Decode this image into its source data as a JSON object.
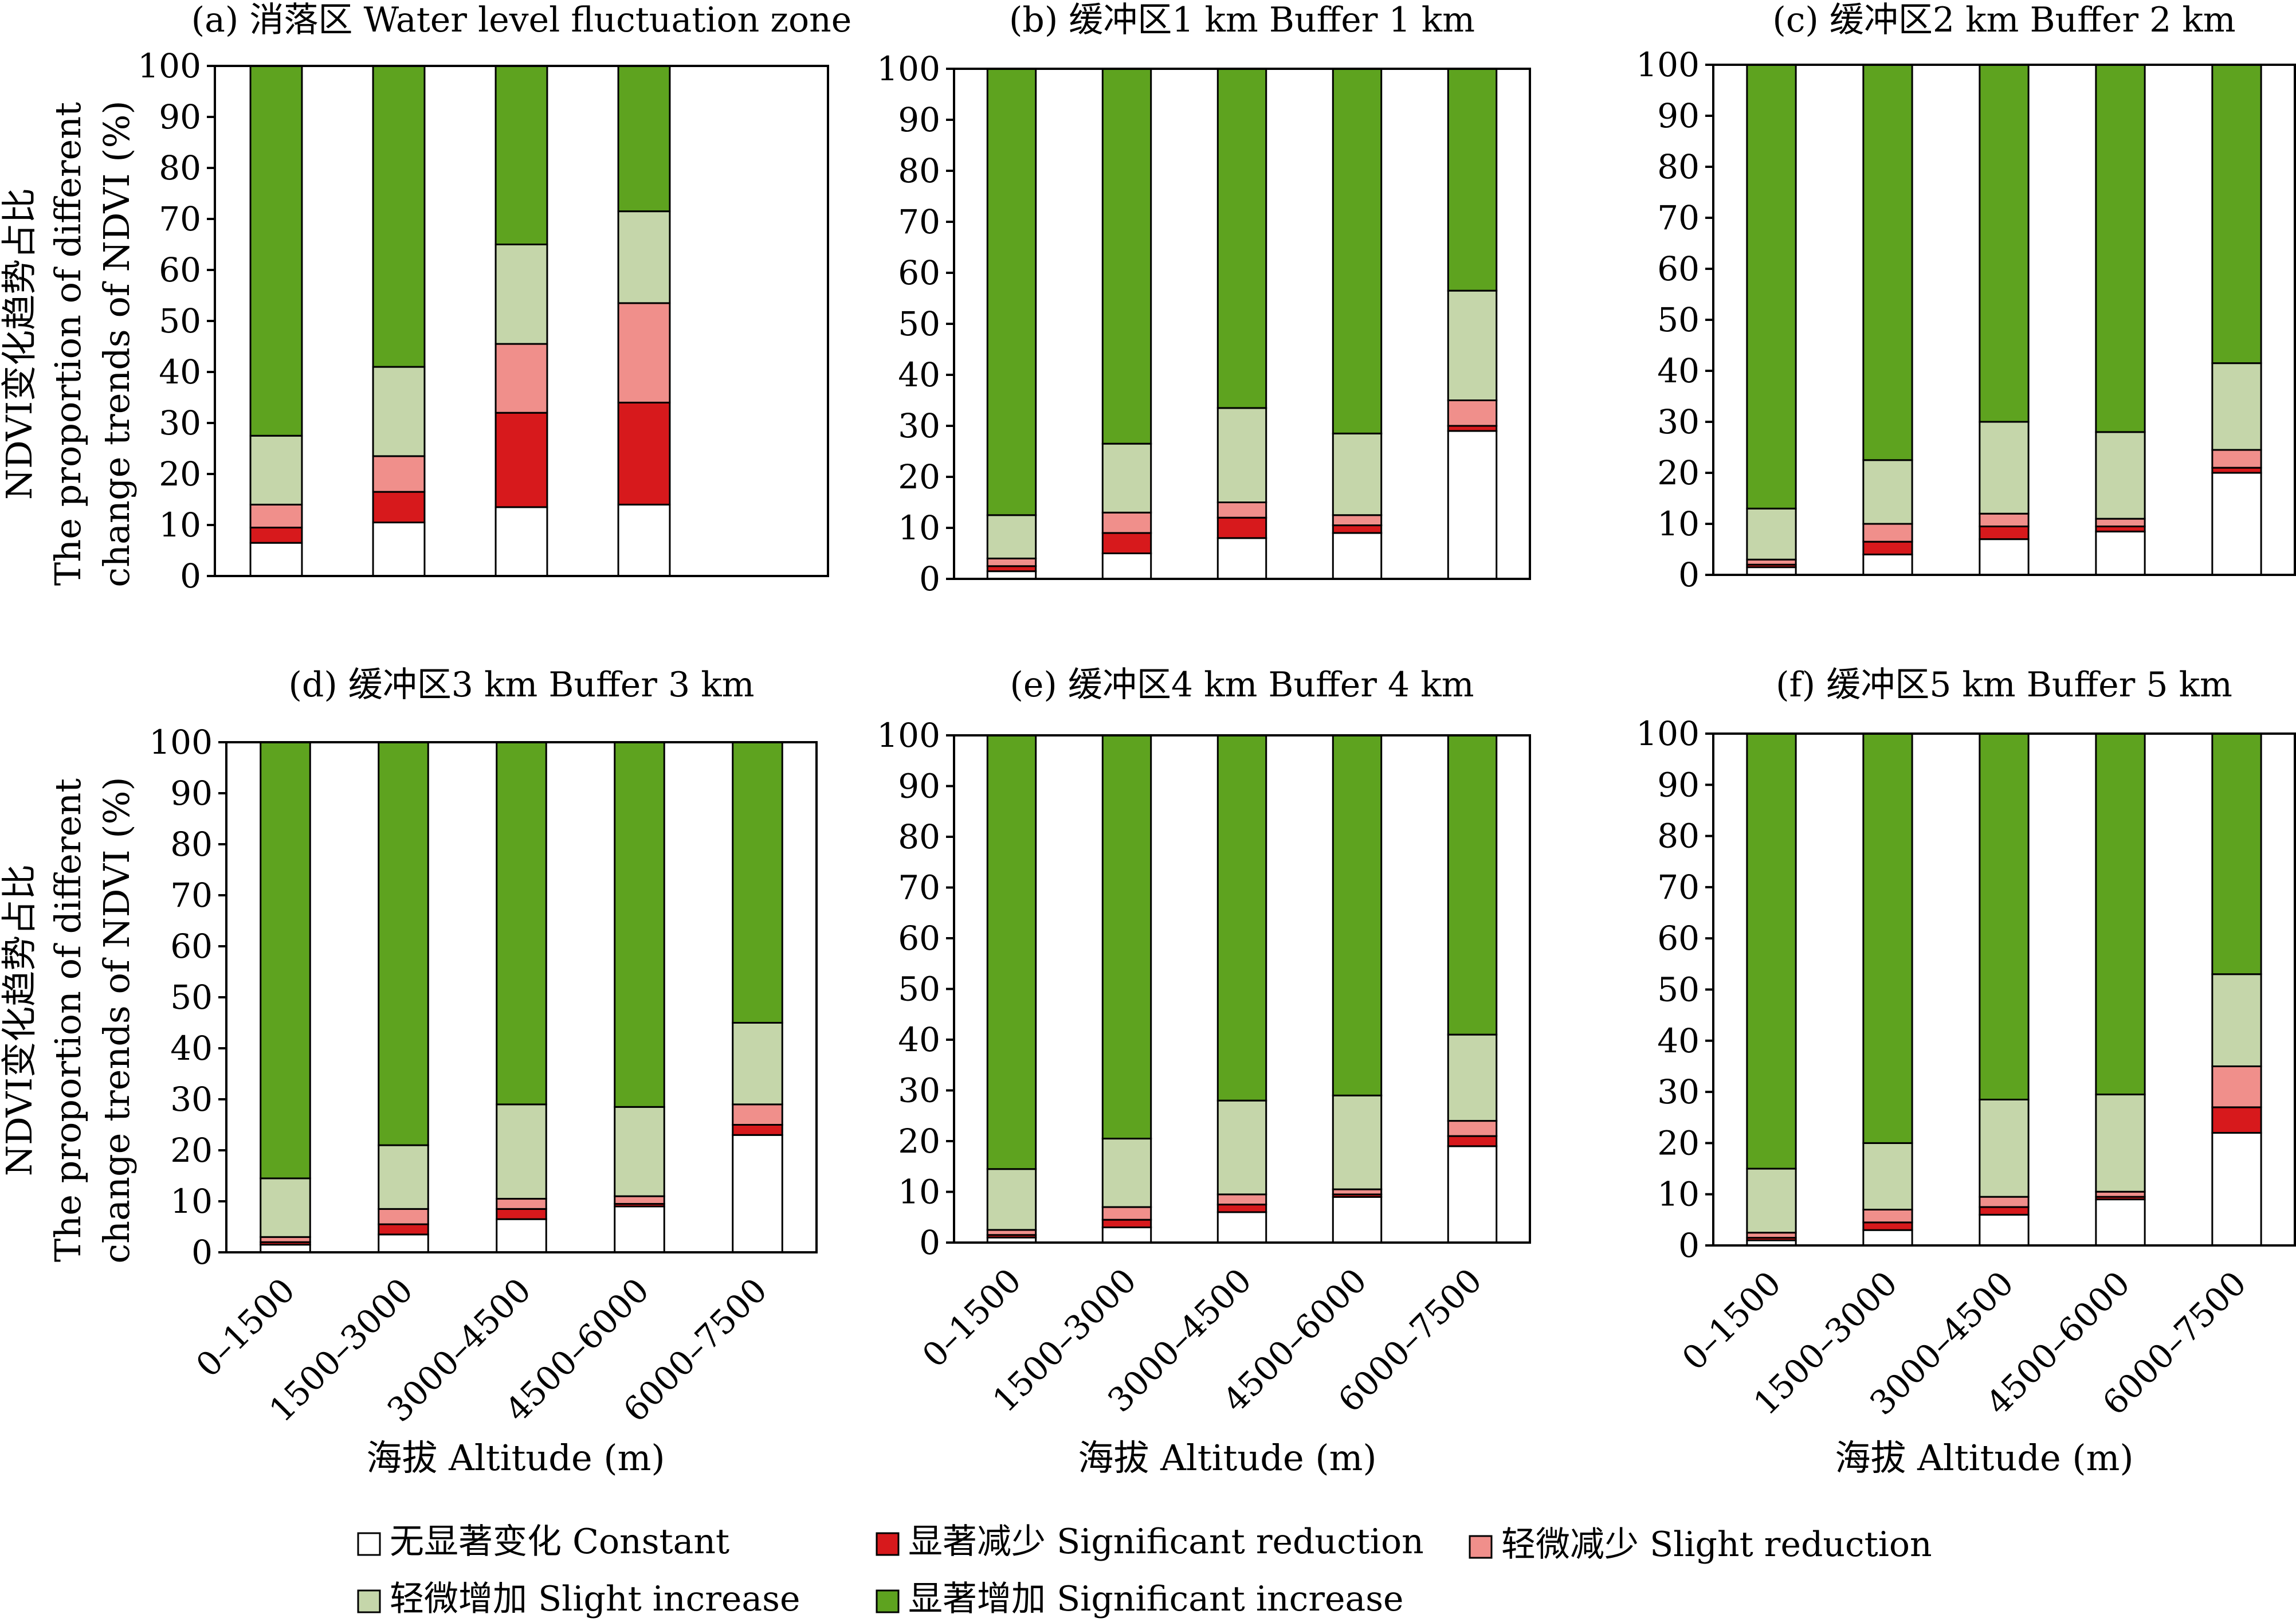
{
  "figure": {
    "y_axis_label_zh": "NDVI变化趋势占比",
    "y_axis_label_en_line1": "The proportion of different",
    "y_axis_label_en_line2": "change trends of NDVI (%)",
    "x_axis_label": "海拔 Altitude (m)"
  },
  "legend": [
    {
      "key": "constant",
      "label": "无显著变化 Constant",
      "color": "#ffffff"
    },
    {
      "key": "sig_red",
      "label": "显著减少 Significant reduction",
      "color": "#d7191c"
    },
    {
      "key": "slight_red",
      "label": "轻微减少 Slight reduction",
      "color": "#f08f8b"
    },
    {
      "key": "slight_inc",
      "label": "轻微增加 Slight increase",
      "color": "#c5d6aa"
    },
    {
      "key": "sig_inc",
      "label": "显著增加 Significant increase",
      "color": "#5ea31f"
    }
  ],
  "chart_data": [
    {
      "type": "bar",
      "stacked": true,
      "title": "(a) 消落区 Water level fluctuation zone",
      "categories": [
        "0–1500",
        "1500–3000",
        "3000–4500",
        "4500–6000",
        "6000–7500"
      ],
      "ylim": [
        0,
        100
      ],
      "yticks": [
        0,
        10,
        20,
        30,
        40,
        50,
        60,
        70,
        80,
        90,
        100
      ],
      "show_xticks": false,
      "series": [
        {
          "name": "无显著变化 Constant",
          "values": [
            6.5,
            10.5,
            13.5,
            14,
            null
          ]
        },
        {
          "name": "显著减少 Significant reduction",
          "values": [
            3,
            6,
            18.5,
            20,
            null
          ]
        },
        {
          "name": "轻微减少 Slight reduction",
          "values": [
            4.5,
            7,
            13.5,
            19.5,
            null
          ]
        },
        {
          "name": "轻微增加 Slight increase",
          "values": [
            13.5,
            17.5,
            19.5,
            18,
            null
          ]
        },
        {
          "name": "显著增加 Significant increase",
          "values": [
            72.5,
            59,
            35,
            28.5,
            null
          ]
        }
      ]
    },
    {
      "type": "bar",
      "stacked": true,
      "title": "(b) 缓冲区1 km Buffer 1 km",
      "categories": [
        "0–1500",
        "1500–3000",
        "3000–4500",
        "4500–6000",
        "6000–7500"
      ],
      "ylim": [
        0,
        100
      ],
      "yticks": [
        0,
        10,
        20,
        30,
        40,
        50,
        60,
        70,
        80,
        90,
        100
      ],
      "show_xticks": false,
      "series": [
        {
          "name": "无显著变化 Constant",
          "values": [
            1.5,
            5,
            8,
            9,
            29
          ]
        },
        {
          "name": "显著减少 Significant reduction",
          "values": [
            1,
            4,
            4,
            1.5,
            1
          ]
        },
        {
          "name": "轻微减少 Slight reduction",
          "values": [
            1.5,
            4,
            3,
            2,
            5
          ]
        },
        {
          "name": "轻微增加 Slight increase",
          "values": [
            8.5,
            13.5,
            18.5,
            16,
            21.5
          ]
        },
        {
          "name": "显著增加 Significant increase",
          "values": [
            87.5,
            73.5,
            66.5,
            71.5,
            43.5
          ]
        }
      ]
    },
    {
      "type": "bar",
      "stacked": true,
      "title": "(c) 缓冲区2 km Buffer 2 km",
      "categories": [
        "0–1500",
        "1500–3000",
        "3000–4500",
        "4500–6000",
        "6000–7500"
      ],
      "ylim": [
        0,
        100
      ],
      "yticks": [
        0,
        10,
        20,
        30,
        40,
        50,
        60,
        70,
        80,
        90,
        100
      ],
      "show_xticks": false,
      "series": [
        {
          "name": "无显著变化 Constant",
          "values": [
            1.5,
            4,
            7,
            8.5,
            20
          ]
        },
        {
          "name": "显著减少 Significant reduction",
          "values": [
            0.5,
            2.5,
            2.5,
            1,
            1
          ]
        },
        {
          "name": "轻微减少 Slight reduction",
          "values": [
            1,
            3.5,
            2.5,
            1.5,
            3.5
          ]
        },
        {
          "name": "轻微增加 Slight increase",
          "values": [
            10,
            12.5,
            18,
            17,
            17
          ]
        },
        {
          "name": "显著增加 Significant increase",
          "values": [
            87,
            77.5,
            70,
            72,
            58.5
          ]
        }
      ]
    },
    {
      "type": "bar",
      "stacked": true,
      "title": "(d) 缓冲区3 km Buffer 3 km",
      "categories": [
        "0–1500",
        "1500–3000",
        "3000–4500",
        "4500–6000",
        "6000–7500"
      ],
      "ylim": [
        0,
        100
      ],
      "yticks": [
        0,
        10,
        20,
        30,
        40,
        50,
        60,
        70,
        80,
        90,
        100
      ],
      "show_xticks": true,
      "series": [
        {
          "name": "无显著变化 Constant",
          "values": [
            1.5,
            3.5,
            6.5,
            9,
            23
          ]
        },
        {
          "name": "显著减少 Significant reduction",
          "values": [
            0.5,
            2,
            2,
            0.5,
            2
          ]
        },
        {
          "name": "轻微减少 Slight reduction",
          "values": [
            1,
            3,
            2,
            1.5,
            4
          ]
        },
        {
          "name": "轻微增加 Slight increase",
          "values": [
            11.5,
            12.5,
            18.5,
            17.5,
            16
          ]
        },
        {
          "name": "显著增加 Significant increase",
          "values": [
            85.5,
            79,
            71,
            71.5,
            55
          ]
        }
      ]
    },
    {
      "type": "bar",
      "stacked": true,
      "title": "(e) 缓冲区4 km Buffer 4 km",
      "categories": [
        "0–1500",
        "1500–3000",
        "3000–4500",
        "4500–6000",
        "6000–7500"
      ],
      "ylim": [
        0,
        100
      ],
      "yticks": [
        0,
        10,
        20,
        30,
        40,
        50,
        60,
        70,
        80,
        90,
        100
      ],
      "show_xticks": true,
      "series": [
        {
          "name": "无显著变化 Constant",
          "values": [
            1,
            3,
            6,
            9,
            19
          ]
        },
        {
          "name": "显著减少 Significant reduction",
          "values": [
            0.5,
            1.5,
            1.5,
            0.5,
            2
          ]
        },
        {
          "name": "轻微减少 Slight reduction",
          "values": [
            1,
            2.5,
            2,
            1,
            3
          ]
        },
        {
          "name": "轻微增加 Slight increase",
          "values": [
            12,
            13.5,
            18.5,
            18.5,
            17
          ]
        },
        {
          "name": "显著增加 Significant increase",
          "values": [
            85.5,
            79.5,
            72,
            71,
            59
          ]
        }
      ]
    },
    {
      "type": "bar",
      "stacked": true,
      "title": "(f) 缓冲区5 km Buffer 5 km",
      "categories": [
        "0–1500",
        "1500–3000",
        "3000–4500",
        "4500–6000",
        "6000–7500"
      ],
      "ylim": [
        0,
        100
      ],
      "yticks": [
        0,
        10,
        20,
        30,
        40,
        50,
        60,
        70,
        80,
        90,
        100
      ],
      "show_xticks": true,
      "series": [
        {
          "name": "无显著变化 Constant",
          "values": [
            1,
            3,
            6,
            9,
            22
          ]
        },
        {
          "name": "显著减少 Significant reduction",
          "values": [
            0.5,
            1.5,
            1.5,
            0.5,
            5
          ]
        },
        {
          "name": "轻微减少 Slight reduction",
          "values": [
            1,
            2.5,
            2,
            1,
            8
          ]
        },
        {
          "name": "轻微增加 Slight increase",
          "values": [
            12.5,
            13,
            19,
            19,
            18
          ]
        },
        {
          "name": "显著增加 Significant increase",
          "values": [
            85,
            80,
            71.5,
            70.5,
            47
          ]
        }
      ]
    }
  ]
}
